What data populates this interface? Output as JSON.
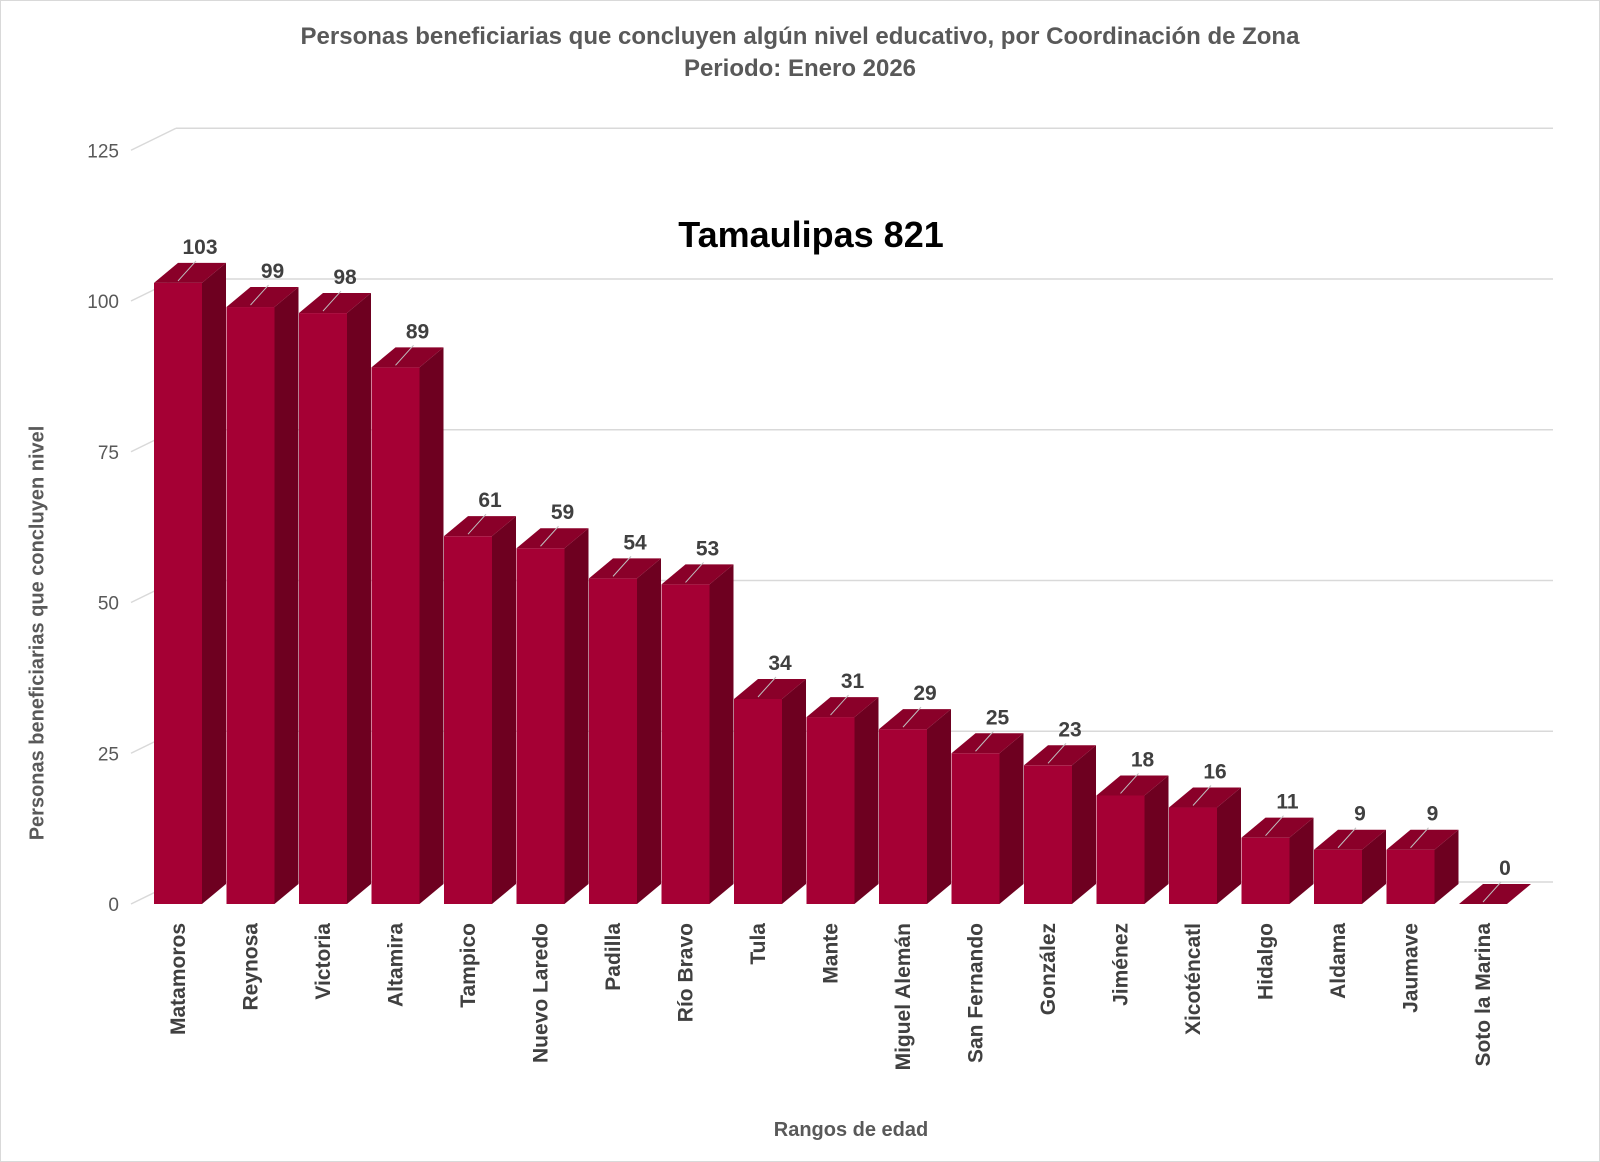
{
  "chart_data": {
    "type": "bar",
    "title": "Personas beneficiarias que concluyen algún nivel educativo, por Coordinación de Zona",
    "subtitle": "Periodo: Enero 2026",
    "annotation": "Tamaulipas 821",
    "xlabel": "Rangos de edad",
    "ylabel": "Personas beneficiarias que concluyen nivel",
    "categories": [
      "Matamoros",
      "Reynosa",
      "Victoria",
      "Altamira",
      "Tampico",
      "Nuevo Laredo",
      "Padilla",
      "Río Bravo",
      "Tula",
      "Mante",
      "Miguel Alemán",
      "San Fernando",
      "González",
      "Jiménez",
      "Xicoténcatl",
      "Hidalgo",
      "Aldama",
      "Jaumave",
      "Soto la Marina"
    ],
    "values": [
      103,
      99,
      98,
      89,
      61,
      59,
      54,
      53,
      34,
      31,
      29,
      25,
      23,
      18,
      16,
      11,
      9,
      9,
      0
    ],
    "yticks": [
      0,
      25,
      50,
      75,
      100,
      125
    ],
    "ylim": [
      0,
      125
    ],
    "grid": true,
    "legend": "none",
    "bar_style": "3d-column",
    "colors": {
      "bar_front": "#A50034",
      "bar_side": "#6E0020",
      "bar_top": "#8A0029",
      "grid": "#d9d9d9"
    }
  }
}
